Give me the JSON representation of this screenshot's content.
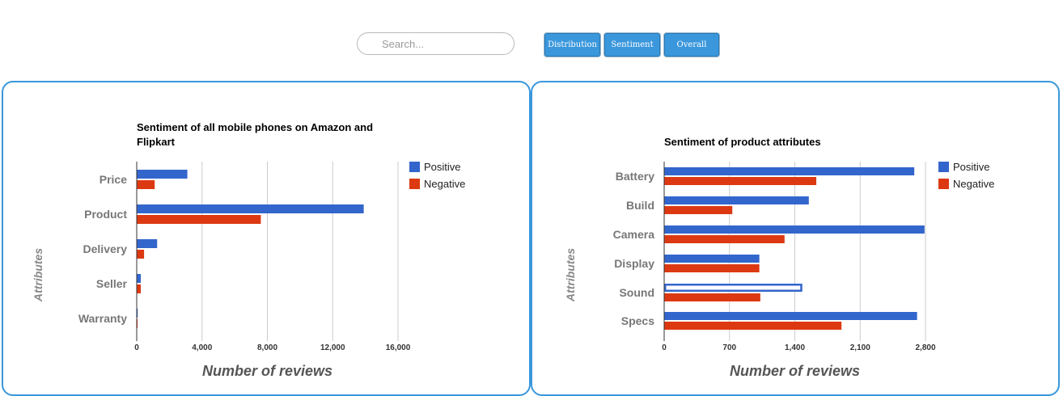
{
  "search": {
    "placeholder": "Search..."
  },
  "tabs": [
    {
      "label": "Distribution"
    },
    {
      "label": "Sentiment"
    },
    {
      "label": "Overall"
    }
  ],
  "colors": {
    "positive": "#3366cc",
    "negative": "#dc3912",
    "accent": "#3a97dc"
  },
  "chart_data": [
    {
      "type": "bar",
      "orientation": "horizontal",
      "title": "Sentiment of all mobile phones on Amazon and Flipkart",
      "title_lines": [
        "Sentiment of all mobile phones on Amazon and",
        "Flipkart"
      ],
      "xlabel": "Number of reviews",
      "ylabel": "Attributes",
      "categories": [
        "Price",
        "Product",
        "Delivery",
        "Seller",
        "Warranty"
      ],
      "series": [
        {
          "name": "Positive",
          "values": [
            3100,
            13900,
            1250,
            250,
            60
          ]
        },
        {
          "name": "Negative",
          "values": [
            1100,
            7600,
            450,
            250,
            50
          ]
        }
      ],
      "xticks": [
        0,
        4000,
        8000,
        12000,
        16000
      ],
      "xtick_labels": [
        "0",
        "4,000",
        "8,000",
        "12,000",
        "16,000"
      ],
      "xlim": [
        0,
        16000
      ],
      "grid": true,
      "legend": "top-right"
    },
    {
      "type": "bar",
      "orientation": "horizontal",
      "title": "Sentiment of product attributes",
      "title_lines": [
        "Sentiment of product attributes"
      ],
      "xlabel": "Number of reviews",
      "ylabel": "Attributes",
      "categories": [
        "Battery",
        "Build",
        "Camera",
        "Display",
        "Sound",
        "Specs"
      ],
      "series": [
        {
          "name": "Positive",
          "values": [
            2680,
            1550,
            2790,
            1020,
            1480,
            2710
          ]
        },
        {
          "name": "Negative",
          "values": [
            1630,
            730,
            1290,
            1020,
            1030,
            1900
          ]
        }
      ],
      "xticks": [
        0,
        700,
        1400,
        2100,
        2800
      ],
      "xtick_labels": [
        "0",
        "700",
        "1,400",
        "2,100",
        "2,800"
      ],
      "xlim": [
        0,
        2800
      ],
      "grid": true,
      "legend": "top-right",
      "highlighted": {
        "category": "Sound",
        "series": "Positive"
      }
    }
  ]
}
